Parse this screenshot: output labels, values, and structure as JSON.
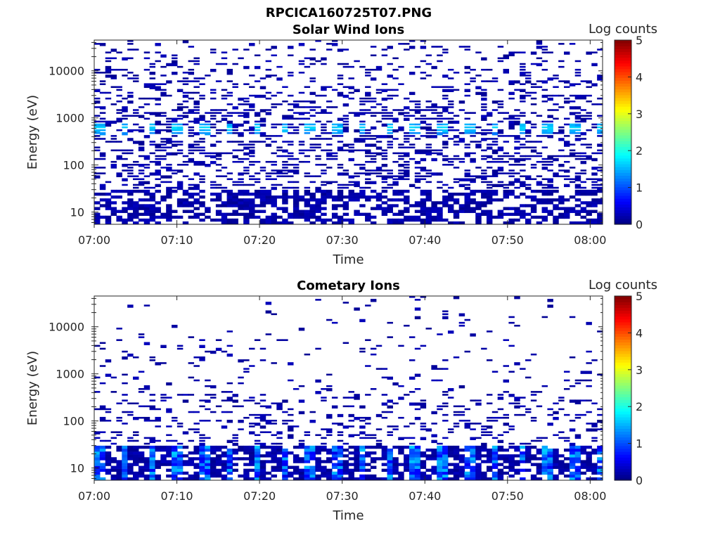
{
  "figure_title": "RPCICA160725T07.PNG",
  "chart_data": [
    {
      "type": "heatmap",
      "title": "Solar Wind Ions",
      "xlabel": "Time",
      "ylabel": "Energy (eV)",
      "x_ticks": [
        "07:00",
        "07:10",
        "07:20",
        "07:30",
        "07:40",
        "07:50",
        "08:00"
      ],
      "x_range_minutes": [
        0,
        61.5
      ],
      "y_scale": "log",
      "y_range": [
        5.5,
        45000
      ],
      "y_ticks": [
        10,
        100,
        1000,
        10000
      ],
      "y_tick_labels": [
        "10",
        "100",
        "1000",
        "10000"
      ],
      "colorbar": {
        "label": "Log counts",
        "min": 0,
        "max": 5,
        "ticks": [
          "0",
          "1",
          "2",
          "3",
          "4",
          "5"
        ],
        "colormap": "jet"
      },
      "sweep_period_minutes": 3.2,
      "peak_energy_eV": 600,
      "peak_level_log_counts": 1.8,
      "background_level_log_counts": 0.1
    },
    {
      "type": "heatmap",
      "title": "Cometary Ions",
      "xlabel": "Time",
      "ylabel": "Energy (eV)",
      "x_ticks": [
        "07:00",
        "07:10",
        "07:20",
        "07:30",
        "07:40",
        "07:50",
        "08:00"
      ],
      "x_range_minutes": [
        0,
        61.5
      ],
      "y_scale": "log",
      "y_range": [
        5.5,
        45000
      ],
      "y_ticks": [
        10,
        100,
        1000,
        10000
      ],
      "y_tick_labels": [
        "10",
        "100",
        "1000",
        "10000"
      ],
      "colorbar": {
        "label": "Log counts",
        "min": 0,
        "max": 5,
        "ticks": [
          "0",
          "1",
          "2",
          "3",
          "4",
          "5"
        ],
        "colormap": "jet"
      },
      "sweep_period_minutes": 3.2,
      "peak_energy_eV": 15,
      "peak_level_log_counts": 1.7,
      "background_level_log_counts": 0.1
    }
  ]
}
